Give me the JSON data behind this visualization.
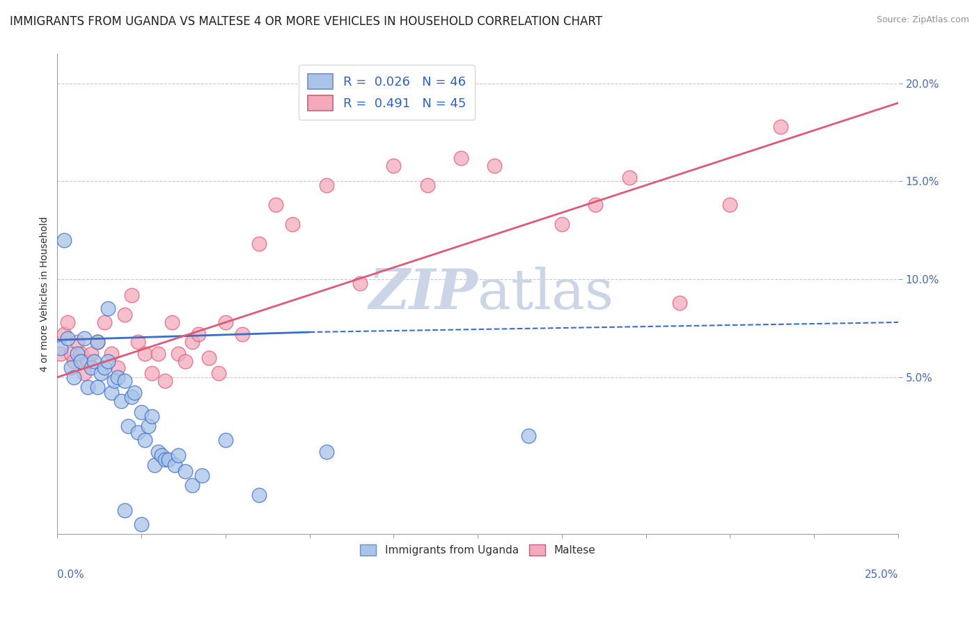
{
  "title": "IMMIGRANTS FROM UGANDA VS MALTESE 4 OR MORE VEHICLES IN HOUSEHOLD CORRELATION CHART",
  "source_text": "Source: ZipAtlas.com",
  "ylabel": "4 or more Vehicles in Household",
  "xlim": [
    0.0,
    0.25
  ],
  "ylim": [
    -0.03,
    0.215
  ],
  "xticks_minor": [
    0.0,
    0.025,
    0.05,
    0.075,
    0.1,
    0.125,
    0.15,
    0.175,
    0.2,
    0.225,
    0.25
  ],
  "xticks_labeled": [
    0.0,
    0.25
  ],
  "xticklabels_labeled": [
    "0.0%",
    "25.0%"
  ],
  "yticks": [
    0.05,
    0.1,
    0.15,
    0.2
  ],
  "yticklabels": [
    "5.0%",
    "10.0%",
    "15.0%",
    "20.0%"
  ],
  "legend_blue_label": "R =  0.026   N = 46",
  "legend_pink_label": "R =  0.491   N = 45",
  "legend_blue_color": "#a8c4e8",
  "legend_pink_color": "#f4aabb",
  "scatter_blue_color": "#a8c4e8",
  "scatter_pink_color": "#f4aabb",
  "line_blue_color": "#3a6cc8",
  "line_pink_color": "#e05878",
  "watermark_color": "#ccd5e8",
  "title_fontsize": 12,
  "axis_label_fontsize": 10,
  "tick_fontsize": 11,
  "legend_fontsize": 13,
  "blue_x": [
    0.001,
    0.002,
    0.003,
    0.004,
    0.005,
    0.006,
    0.007,
    0.008,
    0.009,
    0.01,
    0.011,
    0.012,
    0.012,
    0.013,
    0.014,
    0.015,
    0.015,
    0.016,
    0.017,
    0.018,
    0.019,
    0.02,
    0.021,
    0.022,
    0.023,
    0.024,
    0.025,
    0.026,
    0.027,
    0.028,
    0.029,
    0.03,
    0.031,
    0.032,
    0.033,
    0.035,
    0.036,
    0.038,
    0.04,
    0.043,
    0.05,
    0.06,
    0.08,
    0.02,
    0.025,
    0.14
  ],
  "blue_y": [
    0.065,
    0.12,
    0.07,
    0.055,
    0.05,
    0.062,
    0.058,
    0.07,
    0.045,
    0.055,
    0.058,
    0.045,
    0.068,
    0.052,
    0.055,
    0.085,
    0.058,
    0.042,
    0.048,
    0.05,
    0.038,
    0.048,
    0.025,
    0.04,
    0.042,
    0.022,
    0.032,
    0.018,
    0.025,
    0.03,
    0.005,
    0.012,
    0.01,
    0.008,
    0.008,
    0.005,
    0.01,
    0.002,
    -0.005,
    0.0,
    0.018,
    -0.01,
    0.012,
    -0.018,
    -0.025,
    0.02
  ],
  "pink_x": [
    0.001,
    0.002,
    0.003,
    0.004,
    0.005,
    0.006,
    0.007,
    0.008,
    0.009,
    0.01,
    0.012,
    0.014,
    0.016,
    0.018,
    0.02,
    0.022,
    0.024,
    0.026,
    0.028,
    0.03,
    0.032,
    0.034,
    0.036,
    0.038,
    0.04,
    0.042,
    0.045,
    0.048,
    0.05,
    0.055,
    0.06,
    0.065,
    0.07,
    0.08,
    0.09,
    0.1,
    0.11,
    0.12,
    0.13,
    0.15,
    0.16,
    0.17,
    0.185,
    0.2,
    0.215
  ],
  "pink_y": [
    0.062,
    0.072,
    0.078,
    0.062,
    0.058,
    0.068,
    0.062,
    0.052,
    0.058,
    0.062,
    0.068,
    0.078,
    0.062,
    0.055,
    0.082,
    0.092,
    0.068,
    0.062,
    0.052,
    0.062,
    0.048,
    0.078,
    0.062,
    0.058,
    0.068,
    0.072,
    0.06,
    0.052,
    0.078,
    0.072,
    0.118,
    0.138,
    0.128,
    0.148,
    0.098,
    0.158,
    0.148,
    0.162,
    0.158,
    0.128,
    0.138,
    0.152,
    0.088,
    0.138,
    0.178
  ],
  "blue_line_x": [
    0.0,
    0.075
  ],
  "blue_line_y": [
    0.069,
    0.073
  ],
  "blue_dashed_line_x": [
    0.075,
    0.25
  ],
  "blue_dashed_line_y": [
    0.073,
    0.078
  ],
  "pink_line_x": [
    0.0,
    0.25
  ],
  "pink_line_y": [
    0.05,
    0.19
  ]
}
